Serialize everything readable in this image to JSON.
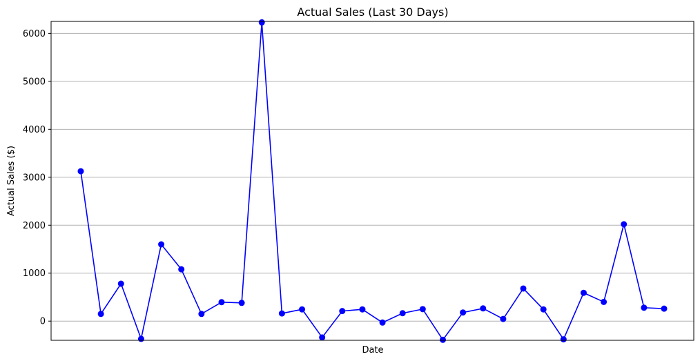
{
  "chart_data": {
    "type": "line",
    "title": "Actual Sales (Last 30 Days)",
    "xlabel": "Date",
    "ylabel": "Actual Sales ($)",
    "ylim": [
      -400,
      6250
    ],
    "yticks": [
      0,
      1000,
      2000,
      3000,
      4000,
      5000,
      6000
    ],
    "grid": {
      "y": true,
      "x": false
    },
    "legend": "none",
    "colors": {
      "series": "#0000ff",
      "grid": "#b0b0b0"
    },
    "marker": "circle",
    "series": [
      {
        "values": [
          3125,
          150,
          780,
          -370,
          1600,
          1080,
          150,
          395,
          380,
          6230,
          160,
          245,
          -340,
          210,
          245,
          -30,
          165,
          250,
          -390,
          180,
          265,
          45,
          680,
          245,
          -380,
          590,
          400,
          2020,
          280,
          260
        ]
      }
    ]
  }
}
